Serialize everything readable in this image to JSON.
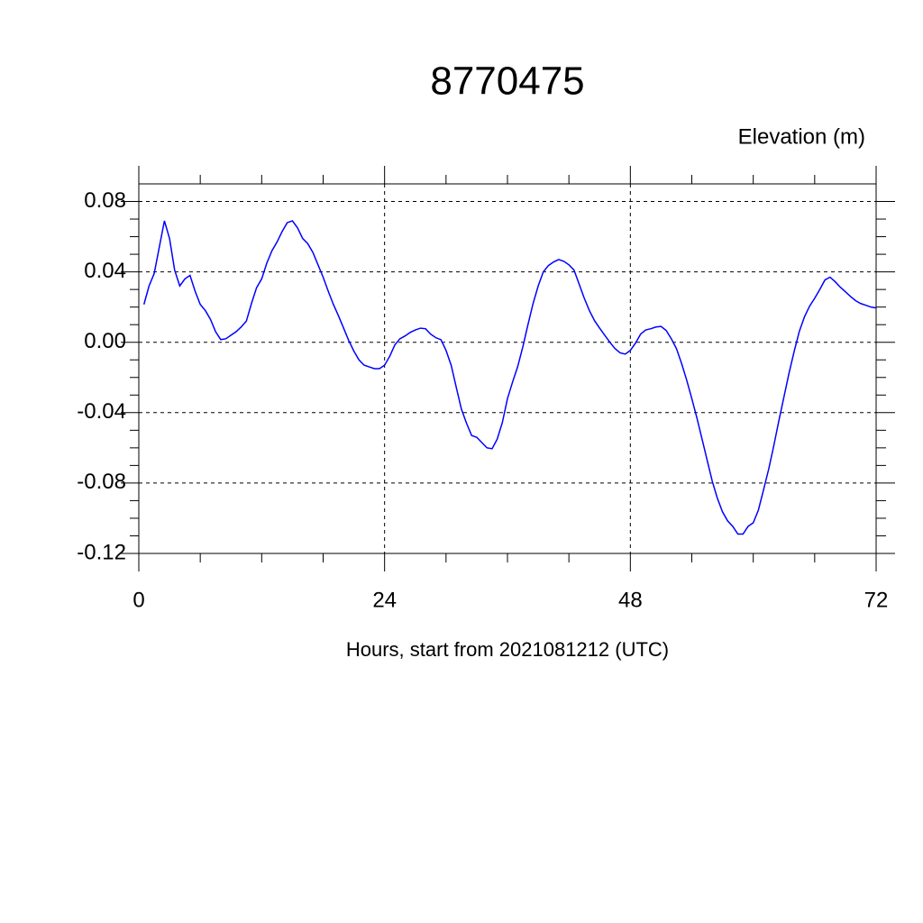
{
  "chart_data": {
    "type": "line",
    "title": "8770475",
    "ylabel": "Elevation (m)",
    "xlabel": "Hours, start from 2021081212 (UTC)",
    "x": [
      0.5,
      1,
      1.5,
      2,
      2.5,
      3,
      3.5,
      4,
      4.5,
      5,
      5.5,
      6,
      6.5,
      7,
      7.5,
      8,
      8.5,
      9,
      9.5,
      10,
      10.5,
      11,
      11.5,
      12,
      12.5,
      13,
      13.5,
      14,
      14.5,
      15,
      15.5,
      16,
      16.5,
      17,
      17.5,
      18,
      18.5,
      19,
      19.5,
      20,
      20.5,
      21,
      21.5,
      22,
      22.5,
      23,
      23.5,
      24,
      24.5,
      25,
      25.5,
      26,
      26.5,
      27,
      27.5,
      28,
      28.5,
      29,
      29.5,
      30,
      30.5,
      31,
      31.5,
      32,
      32.5,
      33,
      33.5,
      34,
      34.5,
      35,
      35.5,
      36,
      36.5,
      37,
      37.5,
      38,
      38.5,
      39,
      39.5,
      40,
      40.5,
      41,
      41.5,
      42,
      42.5,
      43,
      43.5,
      44,
      44.5,
      45,
      45.5,
      46,
      46.5,
      47,
      47.5,
      48,
      48.5,
      49,
      49.5,
      50,
      50.5,
      51,
      51.5,
      52,
      52.5,
      53,
      53.5,
      54,
      54.5,
      55,
      55.5,
      56,
      56.5,
      57,
      57.5,
      58,
      58.5,
      59,
      59.5,
      60,
      60.5,
      61,
      61.5,
      62,
      62.5,
      63,
      63.5,
      64,
      64.5,
      65,
      65.5,
      66,
      66.5,
      67,
      67.5,
      68,
      68.5,
      69,
      69.5,
      70,
      70.5,
      71,
      71.5,
      72
    ],
    "series": [
      {
        "name": "Elevation",
        "color": "#0000ff",
        "values": [
          0.0215,
          0.032,
          0.039,
          0.054,
          0.069,
          0.059,
          0.041,
          0.032,
          0.036,
          0.038,
          0.029,
          0.0215,
          0.018,
          0.013,
          0.006,
          0.0015,
          0.002,
          0.004,
          0.006,
          0.0087,
          0.012,
          0.022,
          0.031,
          0.036,
          0.045,
          0.052,
          0.057,
          0.063,
          0.068,
          0.069,
          0.065,
          0.059,
          0.056,
          0.051,
          0.044,
          0.037,
          0.029,
          0.0215,
          0.015,
          0.008,
          0.001,
          -0.005,
          -0.01,
          -0.013,
          -0.014,
          -0.015,
          -0.015,
          -0.013,
          -0.008,
          -0.0015,
          0.002,
          0.0036,
          0.0056,
          0.007,
          0.008,
          0.0077,
          0.0046,
          0.0026,
          0.0015,
          -0.0046,
          -0.013,
          -0.0256,
          -0.038,
          -0.046,
          -0.053,
          -0.054,
          -0.057,
          -0.06,
          -0.0605,
          -0.055,
          -0.0456,
          -0.032,
          -0.0226,
          -0.0138,
          -0.0026,
          0.01,
          0.022,
          0.032,
          0.04,
          0.0436,
          0.0456,
          0.047,
          0.046,
          0.044,
          0.041,
          0.033,
          0.025,
          0.018,
          0.0123,
          0.008,
          0.004,
          0.0,
          -0.0036,
          -0.006,
          -0.0067,
          -0.0046,
          -0.0005,
          0.0046,
          0.007,
          0.0077,
          0.0087,
          0.009,
          0.0067,
          0.002,
          -0.0036,
          -0.012,
          -0.0215,
          -0.032,
          -0.043,
          -0.055,
          -0.067,
          -0.079,
          -0.0887,
          -0.0964,
          -0.1015,
          -0.1046,
          -0.109,
          -0.109,
          -0.1046,
          -0.1026,
          -0.0954,
          -0.084,
          -0.0723,
          -0.059,
          -0.0446,
          -0.031,
          -0.0174,
          -0.0051,
          0.0062,
          0.0144,
          0.0205,
          0.025,
          0.03,
          0.0354,
          0.037,
          0.0344,
          0.0313,
          0.0287,
          0.026,
          0.0236,
          0.022,
          0.021,
          0.02,
          0.0195
        ]
      }
    ],
    "xlim": [
      0,
      72
    ],
    "xticks": [
      0,
      24,
      48,
      72
    ],
    "ylim": [
      -0.12,
      0.09
    ],
    "yticks": [
      -0.12,
      -0.08,
      -0.04,
      {
        "value": 0,
        "label": "0.00"
      },
      0.04,
      0.08
    ],
    "grid": true
  }
}
